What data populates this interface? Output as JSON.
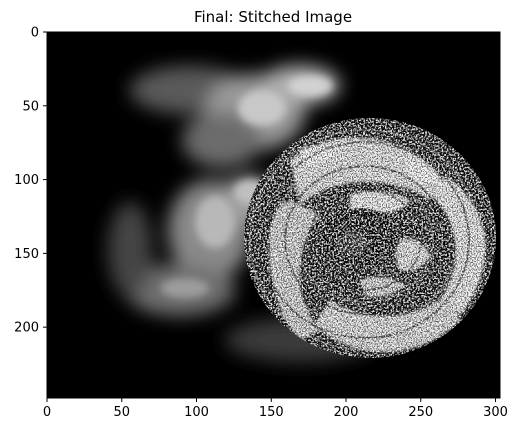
{
  "figure": {
    "title": "Final: Stitched Image"
  },
  "image": {
    "colormap": "gray",
    "background_color": "#000000",
    "x_range": [
      0,
      303
    ],
    "y_range": [
      0,
      248
    ],
    "x_ticks": [
      {
        "value": 0,
        "label": "0"
      },
      {
        "value": 50,
        "label": "50"
      },
      {
        "value": 100,
        "label": "100"
      },
      {
        "value": 150,
        "label": "150"
      },
      {
        "value": 200,
        "label": "200"
      },
      {
        "value": 250,
        "label": "250"
      },
      {
        "value": 300,
        "label": "300"
      }
    ],
    "y_ticks": [
      {
        "value": 0,
        "label": "0"
      },
      {
        "value": 50,
        "label": "50"
      },
      {
        "value": 100,
        "label": "100"
      },
      {
        "value": 150,
        "label": "150"
      },
      {
        "value": 200,
        "label": "200"
      }
    ]
  }
}
